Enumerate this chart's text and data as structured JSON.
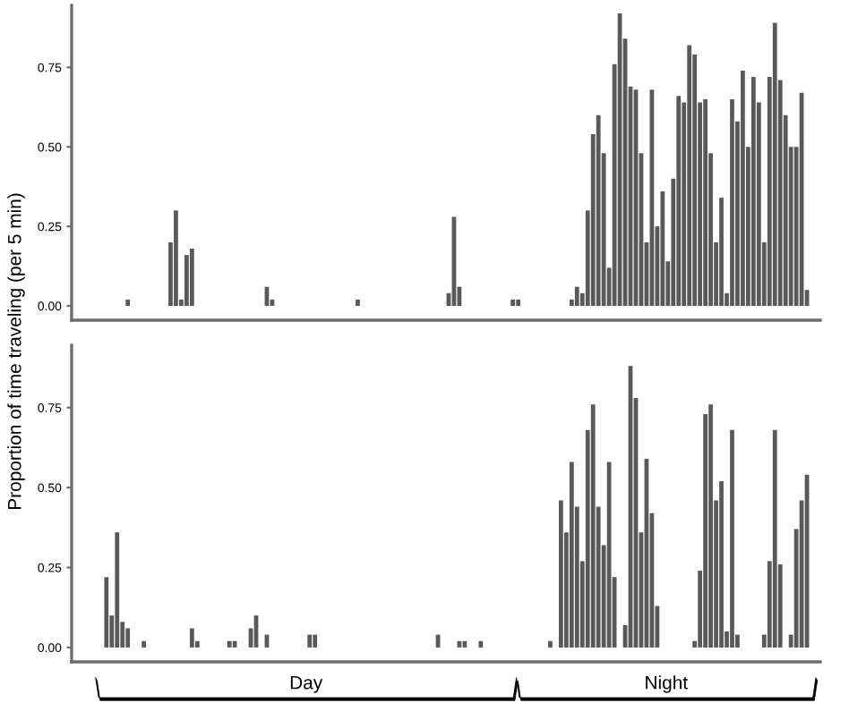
{
  "chart_data": [
    {
      "type": "bar",
      "ylabel": "Proportion of time traveling (per 5 min)",
      "color": "#595959",
      "grid": false,
      "legend": false,
      "categories": [
        null,
        null,
        null,
        null,
        null,
        null,
        null,
        null,
        null,
        null,
        null,
        null,
        null,
        null,
        null,
        null,
        null,
        null,
        null,
        null,
        null,
        null,
        null,
        null,
        null,
        null,
        null,
        null,
        null,
        null,
        null,
        null,
        null,
        null,
        null,
        null,
        null,
        null,
        null,
        null,
        null,
        null,
        null,
        null,
        null,
        null,
        null,
        null,
        null,
        null,
        null,
        null,
        null,
        null,
        null,
        null,
        null,
        null,
        null,
        null,
        null,
        null,
        null,
        null,
        null,
        null,
        null,
        null,
        null,
        null,
        null,
        null,
        null,
        null,
        null,
        null,
        null,
        null,
        null,
        null,
        null,
        null,
        null,
        null,
        null,
        null,
        null,
        null,
        null,
        null,
        null,
        null,
        null,
        null,
        null,
        null,
        null,
        null,
        null,
        null,
        null,
        null,
        null,
        null,
        null,
        null,
        null,
        null,
        null,
        null,
        null,
        null,
        null,
        null,
        null,
        null,
        null,
        null,
        null,
        null,
        null,
        null,
        null,
        null,
        null,
        null,
        null,
        null,
        null,
        null,
        null,
        null,
        null,
        null,
        null,
        null,
        null,
        null,
        null,
        null
      ],
      "values": [
        null,
        null,
        null,
        null,
        null,
        null,
        null,
        null,
        null,
        null,
        0.02,
        null,
        null,
        null,
        null,
        null,
        null,
        null,
        0.2,
        0.3,
        0.02,
        0.16,
        0.18,
        null,
        null,
        null,
        null,
        null,
        null,
        null,
        null,
        null,
        null,
        null,
        null,
        null,
        0.06,
        0.02,
        null,
        null,
        null,
        null,
        null,
        null,
        null,
        null,
        null,
        null,
        null,
        null,
        null,
        null,
        null,
        0.02,
        null,
        null,
        null,
        null,
        null,
        null,
        null,
        null,
        null,
        null,
        null,
        null,
        null,
        null,
        null,
        null,
        0.04,
        0.28,
        0.06,
        null,
        null,
        null,
        null,
        null,
        null,
        null,
        null,
        null,
        0.02,
        0.02,
        null,
        null,
        null,
        null,
        null,
        null,
        null,
        null,
        null,
        0.02,
        0.06,
        0.04,
        0.3,
        0.54,
        0.6,
        0.48,
        0.12,
        0.76,
        0.92,
        0.84,
        0.69,
        0.68,
        0.48,
        0.2,
        0.68,
        0.25,
        0.36,
        0.14,
        0.4,
        0.66,
        0.64,
        0.82,
        0.79,
        0.64,
        0.65,
        0.48,
        0.2,
        0.34,
        0.04,
        0.65,
        0.58,
        0.74,
        0.5,
        0.72,
        0.64,
        0.2,
        0.72,
        0.89,
        0.71,
        0.6,
        0.5,
        0.5,
        0.67,
        0.05,
        null,
        null
      ],
      "ylim": [
        -0.045,
        0.945
      ],
      "yticks": [
        {
          "value": 0,
          "label": "0.00"
        },
        {
          "value": 0.25,
          "label": "0.25"
        },
        {
          "value": 0.5,
          "label": "0.50"
        },
        {
          "value": 0.75,
          "label": "0.75"
        }
      ]
    },
    {
      "type": "bar",
      "color": "#595959",
      "grid": false,
      "legend": false,
      "annotations": [
        "Day",
        "Night"
      ],
      "categories": [
        null,
        null,
        null,
        null,
        null,
        null,
        null,
        null,
        null,
        null,
        null,
        null,
        null,
        null,
        null,
        null,
        null,
        null,
        null,
        null,
        null,
        null,
        null,
        null,
        null,
        null,
        null,
        null,
        null,
        null,
        null,
        null,
        null,
        null,
        null,
        null,
        null,
        null,
        null,
        null,
        null,
        null,
        null,
        null,
        null,
        null,
        null,
        null,
        null,
        null,
        null,
        null,
        null,
        null,
        null,
        null,
        null,
        null,
        null,
        null,
        null,
        null,
        null,
        null,
        null,
        null,
        null,
        null,
        null,
        null,
        null,
        null,
        null,
        null,
        null,
        null,
        null,
        null,
        null,
        null,
        null,
        null,
        null,
        null,
        null,
        null,
        null,
        null,
        null,
        null,
        null,
        null,
        null,
        null,
        null,
        null,
        null,
        null,
        null,
        null,
        null,
        null,
        null,
        null,
        null,
        null,
        null,
        null,
        null,
        null,
        null,
        null,
        null,
        null,
        null,
        null,
        null,
        null,
        null,
        null,
        null,
        null,
        null,
        null,
        null,
        null,
        null,
        null,
        null,
        null,
        null,
        null,
        null,
        null,
        null,
        null,
        null,
        null,
        null,
        null
      ],
      "values": [
        null,
        null,
        null,
        null,
        null,
        null,
        0.22,
        0.1,
        0.36,
        0.08,
        0.06,
        null,
        null,
        0.02,
        null,
        null,
        null,
        null,
        null,
        null,
        null,
        null,
        0.06,
        0.02,
        null,
        null,
        null,
        null,
        null,
        0.02,
        0.02,
        null,
        null,
        0.06,
        0.1,
        null,
        0.04,
        null,
        null,
        null,
        null,
        null,
        null,
        null,
        0.04,
        0.04,
        null,
        null,
        null,
        null,
        null,
        null,
        null,
        null,
        null,
        null,
        null,
        null,
        null,
        null,
        null,
        null,
        null,
        null,
        null,
        null,
        null,
        null,
        0.04,
        null,
        null,
        null,
        0.02,
        0.02,
        null,
        null,
        0.02,
        null,
        null,
        null,
        null,
        null,
        null,
        null,
        null,
        null,
        null,
        null,
        null,
        0.02,
        null,
        0.46,
        0.36,
        0.58,
        0.44,
        0.27,
        0.68,
        0.76,
        0.44,
        0.32,
        0.58,
        0.22,
        null,
        0.07,
        0.88,
        0.78,
        0.36,
        0.59,
        0.42,
        0.13,
        null,
        null,
        null,
        null,
        null,
        null,
        0.02,
        0.24,
        0.73,
        0.76,
        0.46,
        0.52,
        0.05,
        0.68,
        0.04,
        null,
        null,
        null,
        null,
        0.04,
        0.27,
        0.68,
        0.26,
        null,
        0.04,
        0.37,
        0.46,
        0.54,
        null,
        null
      ],
      "ylim": [
        -0.045,
        0.945
      ],
      "yticks": [
        {
          "value": 0,
          "label": "0.00"
        },
        {
          "value": 0.25,
          "label": "0.25"
        },
        {
          "value": 0.5,
          "label": "0.50"
        },
        {
          "value": 0.75,
          "label": "0.75"
        }
      ]
    }
  ]
}
